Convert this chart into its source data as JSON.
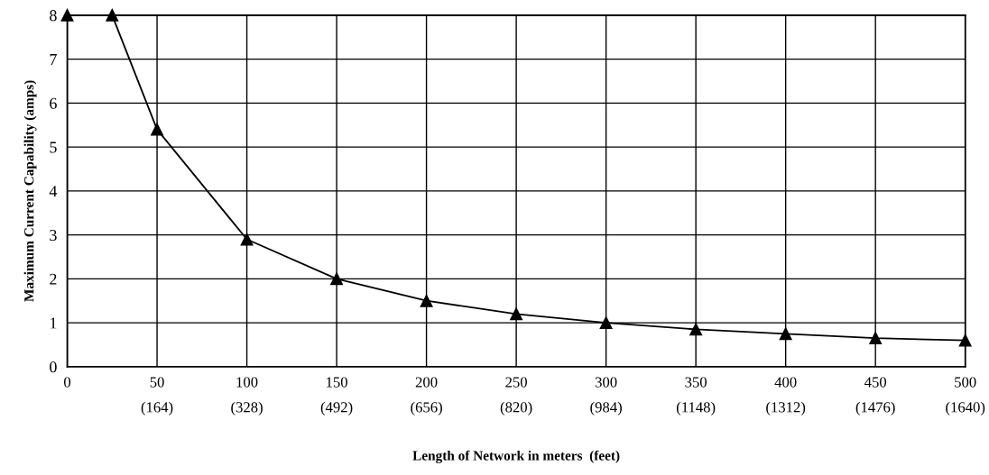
{
  "chart_data": {
    "type": "line",
    "xlabel": "Length of Network in meters  (feet)",
    "ylabel": "Maximum Current Capability (amps)",
    "x": [
      0,
      25,
      50,
      100,
      150,
      200,
      250,
      300,
      350,
      400,
      450,
      500
    ],
    "series": [
      {
        "color": "#000000",
        "values": [
          8,
          8,
          5.4,
          2.9,
          2.0,
          1.5,
          1.2,
          1.0,
          0.85,
          0.75,
          0.65,
          0.6
        ]
      }
    ],
    "xlim": [
      0,
      500
    ],
    "ylim": [
      0,
      8
    ],
    "xticks": [
      0,
      50,
      100,
      150,
      200,
      250,
      300,
      350,
      400,
      450,
      500
    ],
    "x2lim": [
      0,
      1640
    ],
    "x2ticks": [
      {
        "value": 164,
        "label": "(164)"
      },
      {
        "value": 328,
        "label": "(328)"
      },
      {
        "value": 492,
        "label": "(492)"
      },
      {
        "value": 656,
        "label": "(656)"
      },
      {
        "value": 820,
        "label": "(820)"
      },
      {
        "value": 984,
        "label": "(984)"
      },
      {
        "value": 1148,
        "label": "(1148)"
      },
      {
        "value": 1312,
        "label": "(1312)"
      },
      {
        "value": 1476,
        "label": "(1476)"
      },
      {
        "value": 1640,
        "label": "(1640)"
      }
    ],
    "yticks": [
      0,
      1,
      2,
      3,
      4,
      5,
      6,
      7,
      8
    ],
    "grid": true,
    "marker": "triangle",
    "line_style": "solid",
    "legend": false
  }
}
